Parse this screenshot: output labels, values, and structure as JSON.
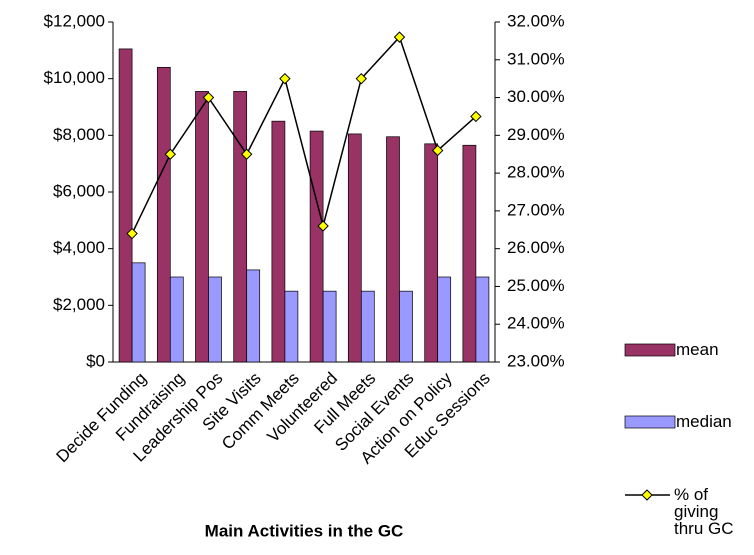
{
  "chart_data": {
    "type": "bar-line",
    "x_label": "Main Activities in the GC",
    "categories": [
      "Decide Funding",
      "Fundraising",
      "Leadership Pos",
      "Site Visits",
      "Comm Meets",
      "Volunteered",
      "Full Meets",
      "Social Events",
      "Action on Policy",
      "Educ Sessions"
    ],
    "series": [
      {
        "name": "mean",
        "type": "bar",
        "color": "#993366",
        "values": [
          11050,
          10400,
          9550,
          9550,
          8500,
          8150,
          8050,
          7950,
          7700,
          7650
        ]
      },
      {
        "name": "median",
        "type": "bar",
        "color": "#9999ff",
        "values": [
          3500,
          3000,
          3000,
          3250,
          2500,
          2500,
          2500,
          2500,
          3000,
          3000
        ]
      },
      {
        "name": "% of giving thru GC",
        "type": "line",
        "axis": "y2",
        "color": "#000000",
        "marker_color": "#ffff00",
        "values": [
          26.4,
          28.5,
          30.0,
          28.5,
          30.5,
          26.6,
          30.5,
          31.6,
          28.6,
          29.5
        ]
      }
    ],
    "ylim": [
      0,
      12000
    ],
    "yticks": [
      {
        "value": 0,
        "label": "$0"
      },
      {
        "value": 2000,
        "label": "$2,000"
      },
      {
        "value": 4000,
        "label": "$4,000"
      },
      {
        "value": 6000,
        "label": "$6,000"
      },
      {
        "value": 8000,
        "label": "$8,000"
      },
      {
        "value": 10000,
        "label": "$10,000"
      },
      {
        "value": 12000,
        "label": "$12,000"
      }
    ],
    "y2lim": [
      23,
      32
    ],
    "y2ticks": [
      {
        "value": 23,
        "label": "23.00%"
      },
      {
        "value": 24,
        "label": "24.00%"
      },
      {
        "value": 25,
        "label": "25.00%"
      },
      {
        "value": 26,
        "label": "26.00%"
      },
      {
        "value": 27,
        "label": "27.00%"
      },
      {
        "value": 28,
        "label": "28.00%"
      },
      {
        "value": 29,
        "label": "29.00%"
      },
      {
        "value": 30,
        "label": "30.00%"
      },
      {
        "value": 31,
        "label": "31.00%"
      },
      {
        "value": 32,
        "label": "32.00%"
      }
    ],
    "legend": "right"
  }
}
